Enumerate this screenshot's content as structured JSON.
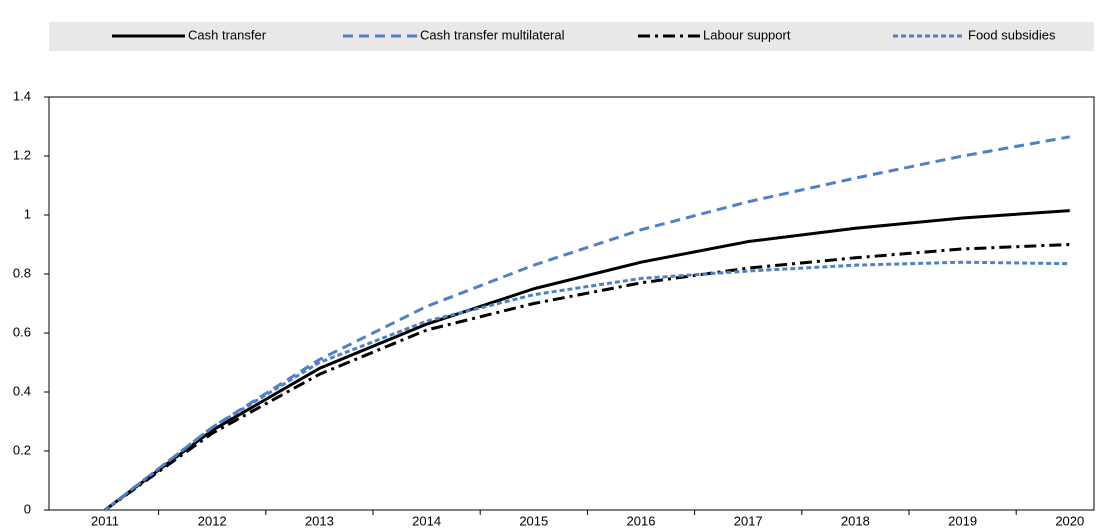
{
  "chart_data": {
    "type": "line",
    "categories": [
      "2011",
      "2012",
      "2013",
      "2014",
      "2015",
      "2016",
      "2017",
      "2018",
      "2019",
      "2020"
    ],
    "series": [
      {
        "name": "Cash transfer",
        "color": "#000000",
        "dash": "solid",
        "values": [
          0,
          0.27,
          0.48,
          0.63,
          0.75,
          0.84,
          0.91,
          0.955,
          0.99,
          1.015
        ]
      },
      {
        "name": "Cash transfer multilateral",
        "color": "#4f81c4",
        "dash": "dash",
        "values": [
          0,
          0.28,
          0.51,
          0.69,
          0.83,
          0.95,
          1.045,
          1.125,
          1.2,
          1.265
        ]
      },
      {
        "name": "Labour support",
        "color": "#000000",
        "dash": "dashdot",
        "values": [
          0,
          0.26,
          0.46,
          0.61,
          0.7,
          0.77,
          0.82,
          0.855,
          0.885,
          0.9
        ]
      },
      {
        "name": "Food subsidies",
        "color": "#4f81c4",
        "dash": "dot",
        "values": [
          0,
          0.28,
          0.5,
          0.64,
          0.73,
          0.785,
          0.81,
          0.83,
          0.84,
          0.835
        ]
      }
    ],
    "ylim": [
      0,
      1.4
    ],
    "yticks": [
      0,
      0.2,
      0.4,
      0.6,
      0.8,
      1,
      1.2,
      1.4
    ],
    "grid": false
  }
}
